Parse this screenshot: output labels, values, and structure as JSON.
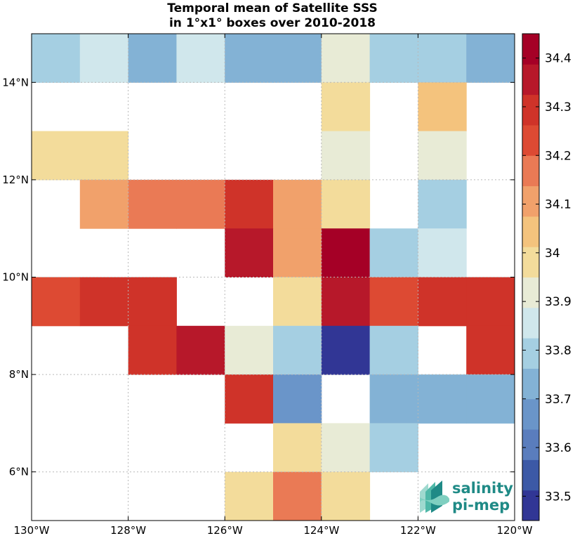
{
  "chart_data": {
    "type": "heatmap",
    "title_lines": [
      "Temporal mean of Satellite SSS",
      "in 1°x1° boxes over 2010-2018"
    ],
    "x_ticks": [
      {
        "value": -130,
        "label": "130°W"
      },
      {
        "value": -128,
        "label": "128°W"
      },
      {
        "value": -126,
        "label": "126°W"
      },
      {
        "value": -124,
        "label": "124°W"
      },
      {
        "value": -122,
        "label": "122°W"
      },
      {
        "value": -120,
        "label": "120°W"
      }
    ],
    "y_ticks": [
      {
        "value": 6,
        "label": "6°N"
      },
      {
        "value": 8,
        "label": "8°N"
      },
      {
        "value": 10,
        "label": "10°N"
      },
      {
        "value": 12,
        "label": "12°N"
      },
      {
        "value": 14,
        "label": "14°N"
      }
    ],
    "xlim": [
      -130,
      -120
    ],
    "ylim": [
      5,
      15
    ],
    "grid": true,
    "cell_size_deg": 1,
    "lon_centers": [
      -129.5,
      -128.5,
      -127.5,
      -126.5,
      -125.5,
      -124.5,
      -123.5,
      -122.5,
      -121.5,
      -120.5
    ],
    "lat_centers": [
      14.5,
      13.5,
      12.5,
      11.5,
      10.5,
      9.5,
      8.5,
      7.5,
      6.5,
      5.5
    ],
    "values": [
      [
        33.78,
        33.84,
        33.74,
        33.84,
        33.75,
        33.75,
        33.94,
        33.78,
        33.82,
        33.7
      ],
      [
        null,
        null,
        null,
        null,
        null,
        null,
        33.98,
        null,
        34.05,
        null
      ],
      [
        33.98,
        33.98,
        null,
        null,
        null,
        null,
        33.9,
        null,
        33.92,
        null
      ],
      [
        null,
        34.1,
        34.18,
        34.18,
        34.28,
        34.12,
        33.98,
        null,
        33.82,
        null
      ],
      [
        null,
        null,
        null,
        null,
        34.38,
        34.12,
        34.45,
        33.82,
        33.86,
        null
      ],
      [
        34.22,
        34.32,
        34.28,
        null,
        null,
        33.98,
        34.38,
        34.22,
        34.28,
        34.28
      ],
      [
        null,
        null,
        34.28,
        34.38,
        33.92,
        33.78,
        33.48,
        33.82,
        null,
        34.28
      ],
      [
        null,
        null,
        null,
        null,
        34.32,
        33.68,
        null,
        33.75,
        33.7,
        33.75
      ],
      [
        null,
        null,
        null,
        null,
        null,
        33.98,
        33.92,
        33.82,
        null,
        null
      ],
      [
        null,
        null,
        null,
        null,
        33.98,
        34.18,
        33.98,
        null,
        null,
        null
      ]
    ],
    "colorbar": {
      "min": 33.45,
      "max": 34.45,
      "levels": 20,
      "tick_values": [
        33.5,
        33.6,
        33.7,
        33.8,
        33.9,
        34.0,
        34.1,
        34.2,
        34.3,
        34.4
      ],
      "tick_labels": [
        "33.5",
        "33.6",
        "33.7",
        "33.8",
        "33.9",
        "34",
        "34.1",
        "34.2",
        "34.3",
        "34.4"
      ],
      "colormap": [
        "#313695",
        "#3c59a6",
        "#5a7dbd",
        "#6a95c9",
        "#83b2d5",
        "#a5cfe2",
        "#d0e7ec",
        "#e8ebd6",
        "#f3dc9b",
        "#f4c37d",
        "#f1a16b",
        "#ea7a55",
        "#dd4a33",
        "#cf3329",
        "#b7182a",
        "#a50026"
      ]
    }
  },
  "logo": {
    "line1": "salinity",
    "line2": "pi-mep",
    "color": "#1f8a86"
  }
}
